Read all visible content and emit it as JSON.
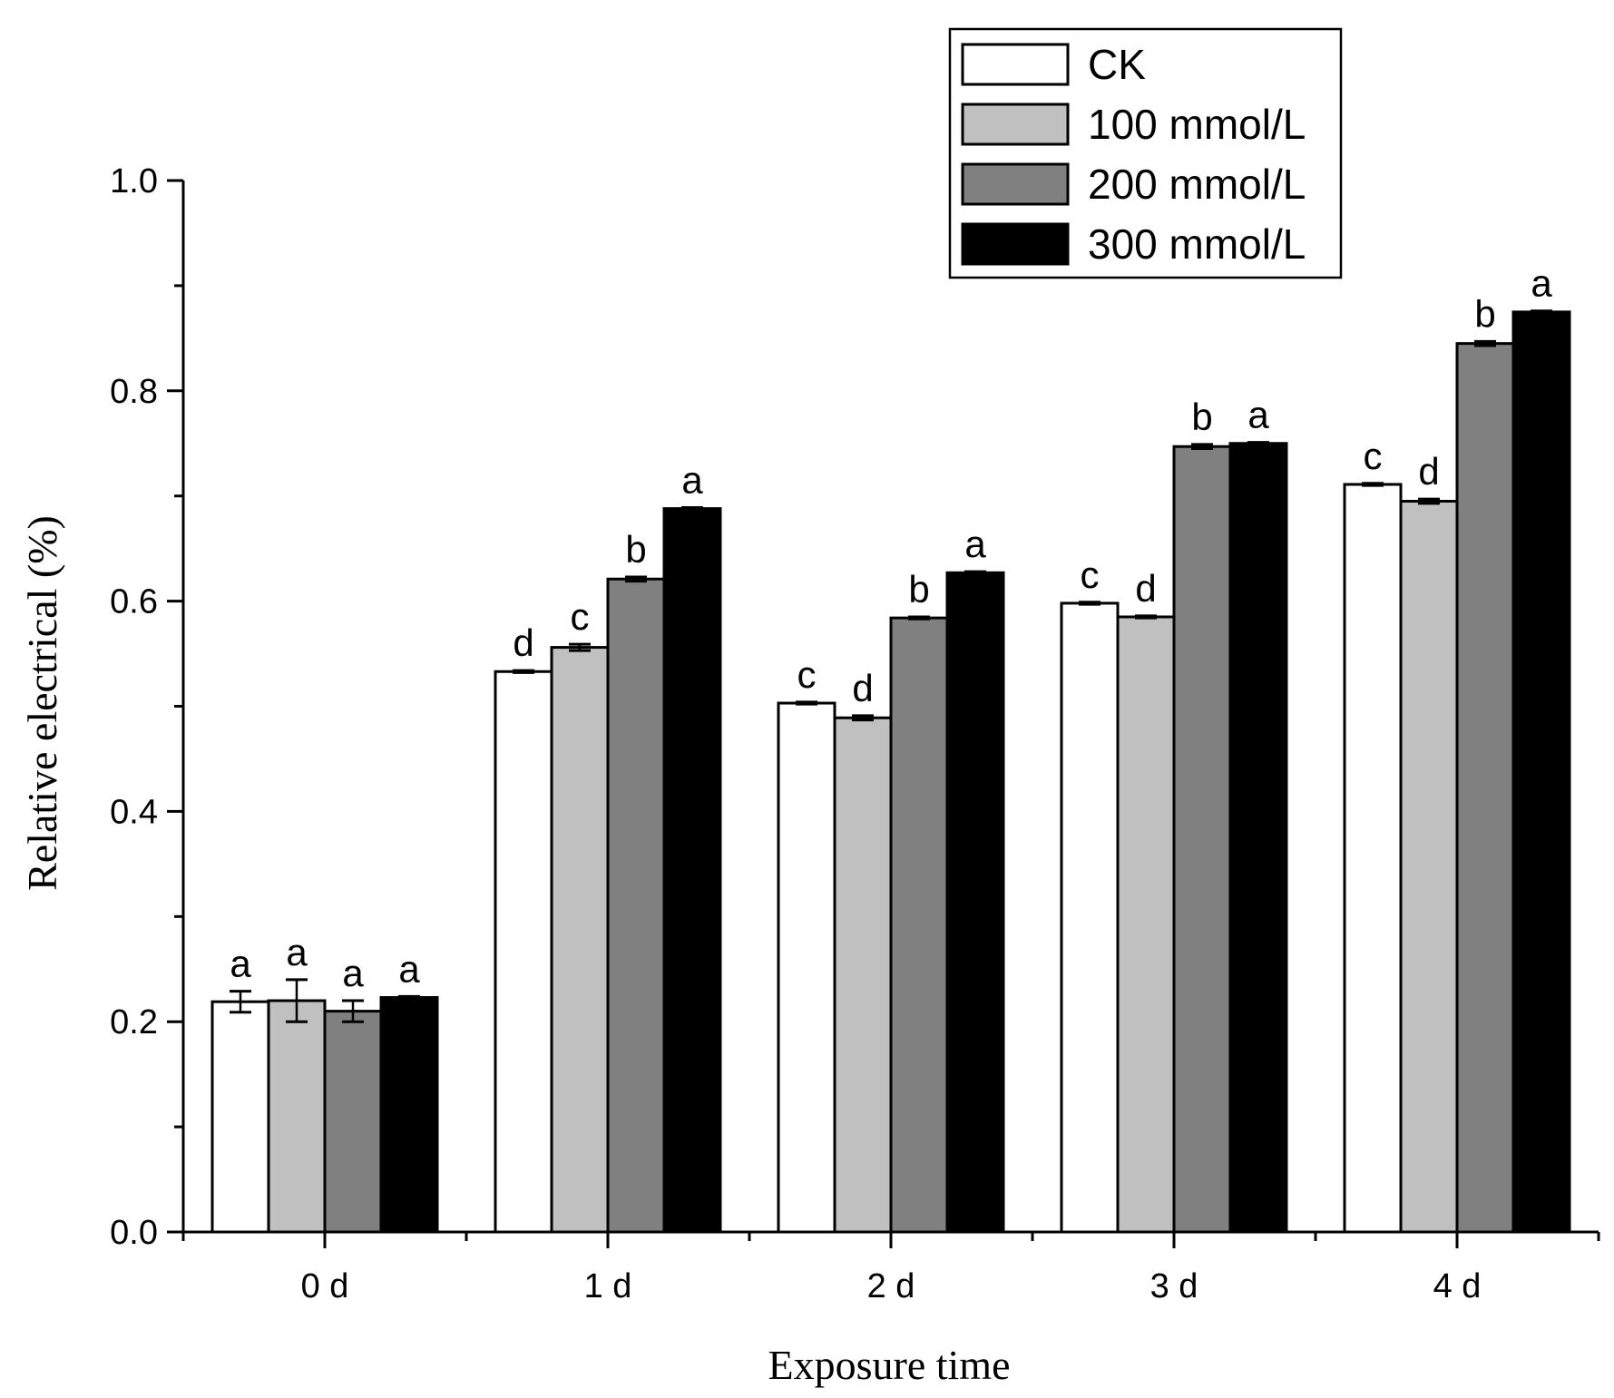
{
  "chart_data": {
    "type": "bar",
    "xlabel": "Exposure time",
    "ylabel": "Relative electrical (%)",
    "ylim": [
      0,
      1.0
    ],
    "yticks": [
      "0.0",
      "0.2",
      "0.4",
      "0.6",
      "0.8",
      "1.0"
    ],
    "categories": [
      "0 d",
      "1 d",
      "2 d",
      "3 d",
      "4 d"
    ],
    "legend_position": "top-right",
    "series": [
      {
        "name": "CK",
        "color": "#ffffff",
        "values": [
          0.219,
          0.533,
          0.503,
          0.598,
          0.711
        ],
        "errors": [
          0.01,
          0.001,
          0.001,
          0.001,
          0.001
        ],
        "letters": [
          "a",
          "d",
          "c",
          "c",
          "c"
        ]
      },
      {
        "name": "100 mmol/L",
        "color": "#c0c0c0",
        "values": [
          0.22,
          0.556,
          0.489,
          0.585,
          0.695
        ],
        "errors": [
          0.02,
          0.003,
          0.002,
          0.001,
          0.002
        ],
        "letters": [
          "a",
          "c",
          "d",
          "d",
          "d"
        ]
      },
      {
        "name": "200 mmol/L",
        "color": "#808080",
        "values": [
          0.21,
          0.621,
          0.584,
          0.747,
          0.845
        ],
        "errors": [
          0.01,
          0.002,
          0.001,
          0.002,
          0.002
        ],
        "letters": [
          "a",
          "b",
          "b",
          "b",
          "b"
        ]
      },
      {
        "name": "300 mmol/L",
        "color": "#000000",
        "values": [
          0.223,
          0.688,
          0.627,
          0.75,
          0.875
        ],
        "errors": [
          0.001,
          0.001,
          0.001,
          0.001,
          0.001
        ],
        "letters": [
          "a",
          "a",
          "a",
          "a",
          "a"
        ]
      }
    ]
  }
}
